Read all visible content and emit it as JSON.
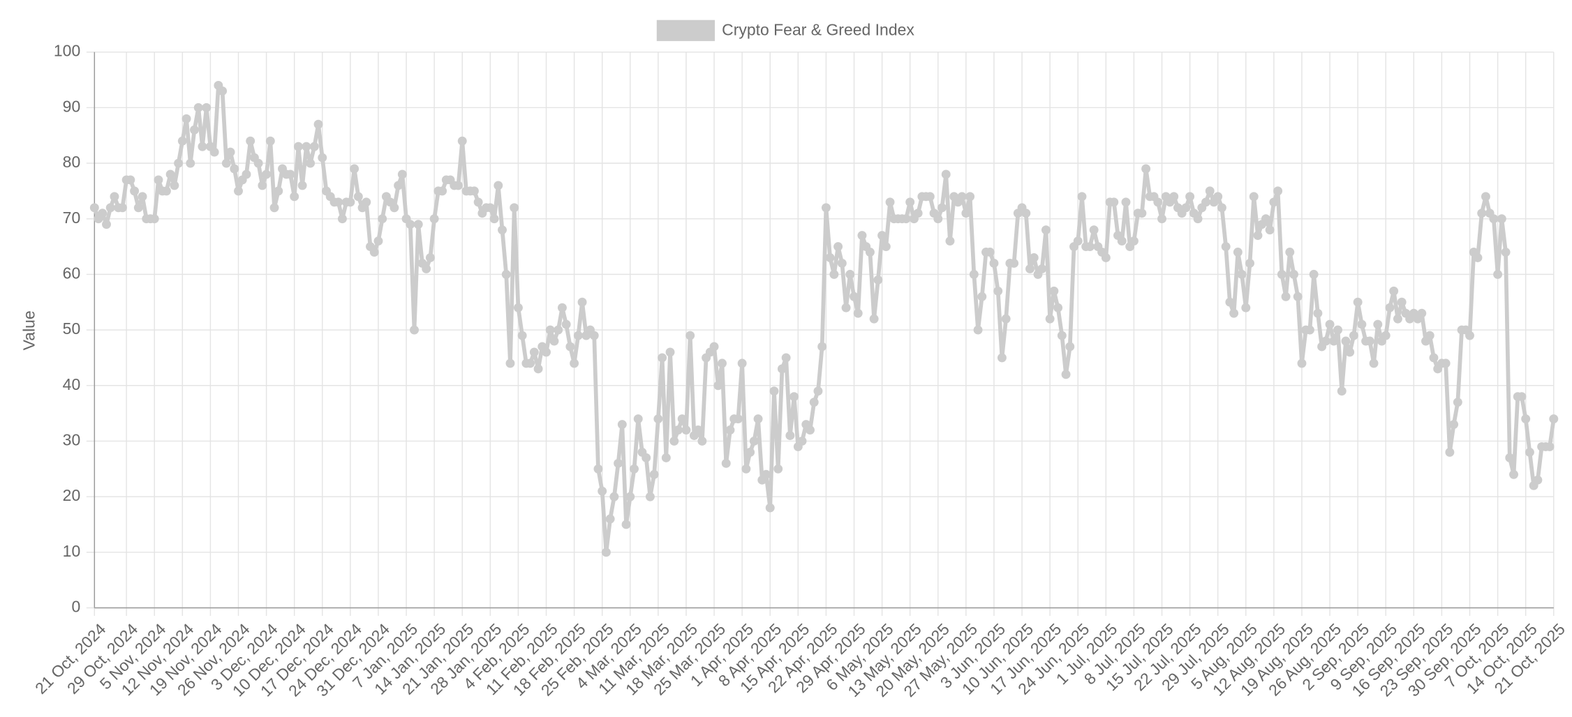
{
  "chart_data": {
    "type": "line",
    "y_label": "Value",
    "ylim": [
      0,
      100
    ],
    "yticks": [
      0,
      10,
      20,
      30,
      40,
      50,
      60,
      70,
      80,
      90,
      100
    ],
    "grid": true,
    "legend": "top",
    "categories": [
      "21 Oct, 2024",
      null,
      null,
      null,
      null,
      null,
      null,
      null,
      "29 Oct, 2024",
      null,
      null,
      null,
      null,
      null,
      null,
      "5 Nov, 2024",
      null,
      null,
      null,
      null,
      null,
      null,
      "12 Nov, 2024",
      null,
      null,
      null,
      null,
      null,
      null,
      "19 Nov, 2024",
      null,
      null,
      null,
      null,
      null,
      null,
      "26 Nov, 2024",
      null,
      null,
      null,
      null,
      null,
      null,
      "3 Dec, 2024",
      null,
      null,
      null,
      null,
      null,
      null,
      "10 Dec, 2024",
      null,
      null,
      null,
      null,
      null,
      null,
      "17 Dec, 2024",
      null,
      null,
      null,
      null,
      null,
      null,
      "24 Dec, 2024",
      null,
      null,
      null,
      null,
      null,
      null,
      "31 Dec, 2024",
      null,
      null,
      null,
      null,
      null,
      null,
      "7 Jan, 2025",
      null,
      null,
      null,
      null,
      null,
      null,
      "14 Jan, 2025",
      null,
      null,
      null,
      null,
      null,
      null,
      "21 Jan, 2025",
      null,
      null,
      null,
      null,
      null,
      null,
      "28 Jan, 2025",
      null,
      null,
      null,
      null,
      null,
      null,
      "4 Feb, 2025",
      null,
      null,
      null,
      null,
      null,
      null,
      "11 Feb, 2025",
      null,
      null,
      null,
      null,
      null,
      null,
      "18 Feb, 2025",
      null,
      null,
      null,
      null,
      null,
      null,
      "25 Feb, 2025",
      null,
      null,
      null,
      null,
      null,
      null,
      "4 Mar, 2025",
      null,
      null,
      null,
      null,
      null,
      null,
      "11 Mar, 2025",
      null,
      null,
      null,
      null,
      null,
      null,
      "18 Mar, 2025",
      null,
      null,
      null,
      null,
      null,
      null,
      "25 Mar, 2025",
      null,
      null,
      null,
      null,
      null,
      null,
      "1 Apr, 2025",
      null,
      null,
      null,
      null,
      null,
      null,
      "8 Apr, 2025",
      null,
      null,
      null,
      null,
      null,
      null,
      "15 Apr, 2025",
      null,
      null,
      null,
      null,
      null,
      null,
      "22 Apr, 2025",
      null,
      null,
      null,
      null,
      null,
      null,
      "29 Apr, 2025",
      null,
      null,
      null,
      null,
      null,
      null,
      "6 May, 2025",
      null,
      null,
      null,
      null,
      null,
      null,
      "13 May, 2025",
      null,
      null,
      null,
      null,
      null,
      null,
      "20 May, 2025",
      null,
      null,
      null,
      null,
      null,
      null,
      "27 May, 2025",
      null,
      null,
      null,
      null,
      null,
      null,
      "3 Jun, 2025",
      null,
      null,
      null,
      null,
      null,
      null,
      "10 Jun, 2025",
      null,
      null,
      null,
      null,
      null,
      null,
      "17 Jun, 2025",
      null,
      null,
      null,
      null,
      null,
      null,
      "24 Jun, 2025",
      null,
      null,
      null,
      null,
      null,
      null,
      "1 Jul, 2025",
      null,
      null,
      null,
      null,
      null,
      null,
      "8 Jul, 2025",
      null,
      null,
      null,
      null,
      null,
      null,
      "15 Jul, 2025",
      null,
      null,
      null,
      null,
      null,
      null,
      "22 Jul, 2025",
      null,
      null,
      null,
      null,
      null,
      null,
      "29 Jul, 2025",
      null,
      null,
      null,
      null,
      null,
      null,
      "5 Aug, 2025",
      null,
      null,
      null,
      null,
      null,
      null,
      "12 Aug, 2025",
      null,
      null,
      null,
      null,
      null,
      null,
      "19 Aug, 2025",
      null,
      null,
      null,
      null,
      null,
      null,
      "26 Aug, 2025",
      null,
      null,
      null,
      null,
      null,
      null,
      "2 Sep, 2025",
      null,
      null,
      null,
      null,
      null,
      null,
      "9 Sep, 2025",
      null,
      null,
      null,
      null,
      null,
      null,
      "16 Sep, 2025",
      null,
      null,
      null,
      null,
      null,
      null,
      "23 Sep, 2025",
      null,
      null,
      null,
      null,
      null,
      null,
      "30 Sep, 2025",
      null,
      null,
      null,
      null,
      null,
      null,
      "7 Oct, 2025",
      null,
      null,
      null,
      null,
      null,
      null,
      "14 Oct, 2025",
      null,
      null,
      null,
      null,
      null,
      null,
      "21 Oct, 2025"
    ],
    "series": [
      {
        "name": "Crypto Fear & Greed Index",
        "color": "#cccccc",
        "values": [
          72,
          70,
          71,
          69,
          72,
          74,
          72,
          72,
          77,
          77,
          75,
          72,
          74,
          70,
          70,
          70,
          77,
          75,
          75,
          78,
          76,
          80,
          84,
          88,
          80,
          86,
          90,
          83,
          90,
          83,
          82,
          94,
          93,
          80,
          82,
          79,
          75,
          77,
          78,
          84,
          81,
          80,
          76,
          78,
          84,
          72,
          75,
          79,
          78,
          78,
          74,
          83,
          76,
          83,
          80,
          83,
          87,
          81,
          75,
          74,
          73,
          73,
          70,
          73,
          73,
          79,
          74,
          72,
          73,
          65,
          64,
          66,
          70,
          74,
          73,
          72,
          76,
          78,
          70,
          69,
          50,
          69,
          62,
          61,
          63,
          70,
          75,
          75,
          77,
          77,
          76,
          76,
          84,
          75,
          75,
          75,
          73,
          71,
          72,
          72,
          70,
          76,
          68,
          60,
          44,
          72,
          54,
          49,
          44,
          44,
          46,
          43,
          47,
          46,
          50,
          48,
          50,
          54,
          51,
          47,
          44,
          49,
          55,
          49,
          50,
          49,
          25,
          21,
          10,
          16,
          20,
          26,
          33,
          15,
          20,
          25,
          34,
          28,
          27,
          20,
          24,
          34,
          45,
          27,
          46,
          30,
          32,
          34,
          32,
          49,
          31,
          32,
          30,
          45,
          46,
          47,
          40,
          44,
          26,
          32,
          34,
          34,
          44,
          25,
          28,
          30,
          34,
          23,
          24,
          18,
          39,
          25,
          43,
          45,
          31,
          38,
          29,
          30,
          33,
          32,
          37,
          39,
          47,
          72,
          63,
          60,
          65,
          62,
          54,
          60,
          56,
          53,
          67,
          65,
          64,
          52,
          59,
          67,
          65,
          73,
          70,
          70,
          70,
          70,
          73,
          70,
          71,
          74,
          74,
          74,
          71,
          70,
          72,
          78,
          66,
          74,
          73,
          74,
          71,
          74,
          60,
          50,
          56,
          64,
          64,
          62,
          57,
          45,
          52,
          62,
          62,
          71,
          72,
          71,
          61,
          63,
          60,
          61,
          68,
          52,
          57,
          54,
          49,
          42,
          47,
          65,
          66,
          74,
          65,
          65,
          68,
          65,
          64,
          63,
          73,
          73,
          67,
          66,
          73,
          65,
          66,
          71,
          71,
          79,
          74,
          74,
          73,
          70,
          74,
          73,
          74,
          72,
          71,
          72,
          74,
          71,
          70,
          72,
          73,
          75,
          73,
          74,
          72,
          65,
          55,
          53,
          64,
          60,
          54,
          62,
          74,
          67,
          69,
          70,
          68,
          73,
          75,
          60,
          56,
          64,
          60,
          56,
          44,
          50,
          50,
          60,
          53,
          47,
          48,
          51,
          48,
          50,
          39,
          48,
          46,
          49,
          55,
          51,
          48,
          48,
          44,
          51,
          48,
          49,
          54,
          57,
          52,
          55,
          53,
          52,
          53,
          52,
          53,
          48,
          49,
          45,
          43,
          44,
          44,
          28,
          33,
          37,
          50,
          50,
          49,
          64,
          63,
          71,
          74,
          71,
          70,
          60,
          70,
          64,
          27,
          24,
          38,
          38,
          34,
          28,
          22,
          23,
          29,
          29,
          29,
          34
        ]
      }
    ]
  }
}
